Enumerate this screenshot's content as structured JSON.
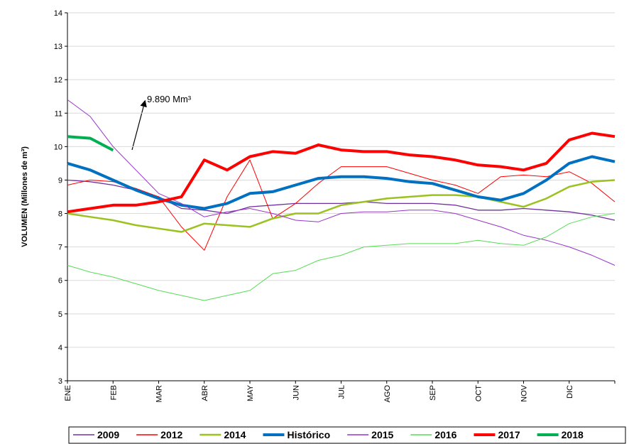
{
  "chart_data": {
    "type": "line",
    "y_label": "VOLUMEN (Millones de m³)",
    "annotation": "9.890 Mm³",
    "categories": [
      "ENE",
      null,
      "FEB",
      null,
      "MAR",
      null,
      "ABR",
      null,
      "MAY",
      null,
      "JUN",
      null,
      "JUL",
      null,
      "AGO",
      null,
      "SEP",
      null,
      "OCT",
      null,
      "NOV",
      null,
      "DIC",
      null,
      null
    ],
    "ylim": [
      3,
      14
    ],
    "yticks": [
      3,
      4,
      5,
      6,
      7,
      8,
      9,
      10,
      11,
      12,
      13,
      14
    ],
    "grid": true,
    "legend": "bottom",
    "series": [
      {
        "name": "2009",
        "color": "#7030a0",
        "width": 1.3,
        "values": [
          9.0,
          8.95,
          8.85,
          8.7,
          8.5,
          8.15,
          8.1,
          8.0,
          8.2,
          8.25,
          8.3,
          8.3,
          8.3,
          8.35,
          8.3,
          8.3,
          8.3,
          8.25,
          8.1,
          8.1,
          8.15,
          8.1,
          8.05,
          7.95,
          7.8
        ]
      },
      {
        "name": "2012",
        "color": "#ff0000",
        "width": 1,
        "values": [
          8.85,
          9.0,
          8.95,
          8.75,
          8.5,
          7.6,
          6.9,
          8.5,
          9.6,
          7.85,
          8.3,
          8.9,
          9.4,
          9.4,
          9.4,
          9.2,
          9.0,
          8.85,
          8.6,
          9.1,
          9.15,
          9.1,
          9.25,
          8.9,
          8.35
        ]
      },
      {
        "name": "2014",
        "color": "#9bc21e",
        "width": 2.5,
        "values": [
          8.0,
          7.9,
          7.8,
          7.65,
          7.55,
          7.45,
          7.7,
          7.65,
          7.6,
          7.85,
          8.0,
          8.0,
          8.25,
          8.35,
          8.45,
          8.5,
          8.55,
          8.55,
          8.5,
          8.35,
          8.2,
          8.45,
          8.8,
          8.95,
          9.0
        ]
      },
      {
        "name": "Histórico",
        "color": "#0070c0",
        "width": 4,
        "values": [
          9.5,
          9.3,
          9.0,
          8.7,
          8.45,
          8.25,
          8.15,
          8.3,
          8.6,
          8.65,
          8.85,
          9.05,
          9.1,
          9.1,
          9.05,
          8.95,
          8.9,
          8.7,
          8.5,
          8.4,
          8.6,
          9.0,
          9.5,
          9.7,
          9.55
        ]
      },
      {
        "name": "2015",
        "color": "#9933cc",
        "width": 1,
        "values": [
          11.4,
          10.9,
          10.0,
          9.3,
          8.6,
          8.3,
          7.9,
          8.05,
          8.15,
          8.0,
          7.8,
          7.75,
          8.0,
          8.05,
          8.05,
          8.1,
          8.1,
          8.0,
          7.8,
          7.6,
          7.35,
          7.2,
          7.0,
          6.75,
          6.45
        ]
      },
      {
        "name": "2016",
        "color": "#55dd55",
        "width": 1,
        "values": [
          6.45,
          6.25,
          6.1,
          5.9,
          5.7,
          5.55,
          5.4,
          5.55,
          5.7,
          6.2,
          6.3,
          6.6,
          6.75,
          7.0,
          7.05,
          7.1,
          7.1,
          7.1,
          7.2,
          7.1,
          7.05,
          7.3,
          7.7,
          7.9,
          8.0
        ]
      },
      {
        "name": "2017",
        "color": "#ff0000",
        "width": 4,
        "values": [
          8.05,
          8.15,
          8.25,
          8.25,
          8.35,
          8.5,
          9.6,
          9.3,
          9.7,
          9.85,
          9.8,
          10.05,
          9.9,
          9.85,
          9.85,
          9.75,
          9.7,
          9.6,
          9.45,
          9.4,
          9.3,
          9.5,
          10.2,
          10.4,
          10.3
        ]
      },
      {
        "name": "2018",
        "color": "#00b050",
        "width": 4,
        "values": [
          10.3,
          10.25,
          9.89,
          null,
          null,
          null,
          null,
          null,
          null,
          null,
          null,
          null,
          null,
          null,
          null,
          null,
          null,
          null,
          null,
          null,
          null,
          null,
          null,
          null,
          null
        ]
      }
    ]
  }
}
